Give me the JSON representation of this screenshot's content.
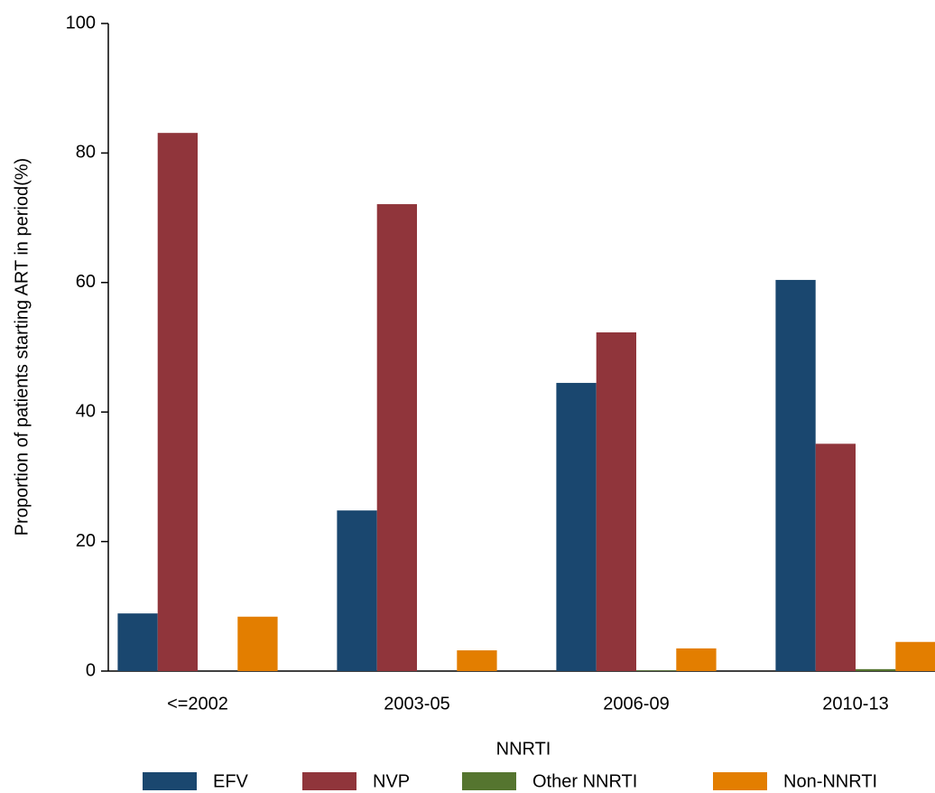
{
  "chart_data": {
    "type": "bar",
    "y_label": "Proportion of patients starting ART in period(%)",
    "legend_title": "NNRTI",
    "legend_position": "bottom",
    "categories": [
      "<=2002",
      "2003-05",
      "2006-09",
      "2010-13"
    ],
    "series": [
      {
        "name": "EFV",
        "color": "#1a476f",
        "values": [
          8.9,
          24.8,
          44.5,
          60.4
        ]
      },
      {
        "name": "NVP",
        "color": "#90353b",
        "values": [
          83.1,
          72.1,
          52.3,
          35.1
        ]
      },
      {
        "name": "Other NNRTI",
        "color": "#55752f",
        "values": [
          0,
          0,
          0.1,
          0.3
        ]
      },
      {
        "name": "Non-NNRTI",
        "color": "#e37e00",
        "values": [
          8.4,
          3.2,
          3.5,
          4.5
        ]
      }
    ],
    "ylim": [
      0,
      100
    ],
    "yticks": [
      0,
      20,
      40,
      60,
      80,
      100
    ],
    "grid": false
  }
}
